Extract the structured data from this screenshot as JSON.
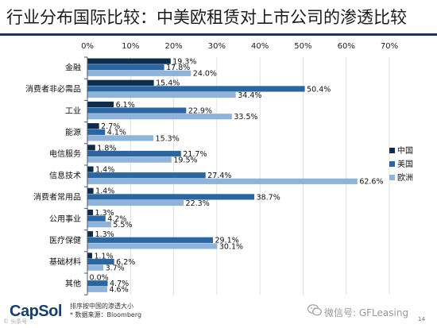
{
  "footer": {
    "logo": "CapSol",
    "note1": "排序按中国的渗透大小",
    "note2": "* 数据来源：Bloomberg",
    "wechat": "微信号: GFLeasing",
    "page_number": "14",
    "watermark": "© 头条号"
  },
  "chart_data": {
    "type": "bar",
    "orientation": "horizontal",
    "title": "行业分布国际比较：中美欧租赁对上市公司的渗透比较",
    "categories": [
      "金融",
      "消费者非必需品",
      "工业",
      "能源",
      "电信服务",
      "信息技术",
      "消费者常用品",
      "公用事业",
      "医疗保健",
      "基础材料",
      "其他"
    ],
    "series": [
      {
        "name": "中国",
        "color": "#0f2c4c",
        "values": [
          19.3,
          15.4,
          6.1,
          2.7,
          1.8,
          1.4,
          1.4,
          1.3,
          1.3,
          1.1,
          0.0
        ]
      },
      {
        "name": "美国",
        "color": "#2a66a1",
        "values": [
          17.8,
          50.4,
          22.9,
          4.1,
          21.7,
          27.4,
          38.7,
          4.2,
          29.1,
          6.2,
          4.7
        ]
      },
      {
        "name": "欧洲",
        "color": "#8fb4dc",
        "values": [
          24.0,
          34.4,
          33.5,
          15.3,
          19.5,
          62.6,
          22.3,
          5.5,
          30.1,
          3.7,
          4.6
        ]
      }
    ],
    "x_ticks": [
      "0%",
      "10%",
      "20%",
      "30%",
      "40%",
      "50%",
      "60%",
      "70%"
    ],
    "xlim": [
      0,
      70
    ],
    "value_suffix": "%",
    "grid": true,
    "legend_position": "right"
  }
}
